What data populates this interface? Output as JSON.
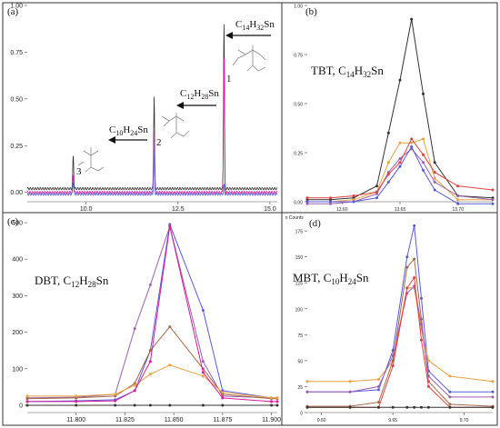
{
  "panels": [
    {
      "label": "(a)"
    },
    {
      "label": "(b)"
    },
    {
      "label": "(c)"
    },
    {
      "label": "(d)"
    }
  ],
  "annotations": {
    "a": [
      {
        "text": "C",
        "sub1": "14",
        "mid": "H",
        "sub2": "32",
        "end": "Sn"
      },
      {
        "text": "C",
        "sub1": "12",
        "mid": "H",
        "sub2": "28",
        "end": "Sn"
      },
      {
        "text": "C",
        "sub1": "10",
        "mid": "H",
        "sub2": "24",
        "end": "Sn"
      }
    ],
    "peak_numbers": [
      "1",
      "2",
      "3"
    ],
    "b": {
      "text": "TBT, C",
      "sub1": "14",
      "mid": "H",
      "sub2": "32",
      "end": "Sn"
    },
    "c": {
      "text": "DBT, C",
      "sub1": "12",
      "mid": "H",
      "sub2": "28",
      "end": "Sn"
    },
    "d": {
      "text": "MBT, C",
      "sub1": "10",
      "mid": "H",
      "sub2": "24",
      "end": "Sn"
    },
    "d_corner": "x Counts"
  },
  "colors": {
    "black": "#333333",
    "magenta": "#d81b9b",
    "blue": "#5a5ad8",
    "orange": "#e8a040",
    "purple": "#9a60b0",
    "brown": "#a06a4a",
    "red": "#e04040"
  },
  "chart_data": [
    {
      "type": "line",
      "panel": "a",
      "xlim": [
        8.4,
        15.2
      ],
      "ylim": [
        -0.05,
        1.0
      ],
      "xticks": [
        "10.0",
        "12.5",
        "15.0"
      ],
      "yticks": [
        "0.00",
        "0.25",
        "0.50",
        "0.75",
        "1.00"
      ],
      "peaks": [
        {
          "x": 9.65,
          "heights": [
            0.18,
            0.1,
            0.07
          ]
        },
        {
          "x": 11.85,
          "heights": [
            0.5,
            0.35,
            0.3
          ]
        },
        {
          "x": 13.75,
          "heights": [
            0.9,
            0.73,
            0.05
          ]
        }
      ]
    },
    {
      "type": "line",
      "panel": "b",
      "xlim": [
        13.57,
        13.73
      ],
      "ylim": [
        0.0,
        1.0
      ],
      "xticks": [
        "13.60",
        "13.65",
        "13.70"
      ],
      "yticks": [
        "0.00",
        "0.25",
        "0.50",
        "0.75",
        "1.00"
      ],
      "x": [
        13.57,
        13.59,
        13.61,
        13.63,
        13.64,
        13.65,
        13.66,
        13.67,
        13.68,
        13.7,
        13.73
      ],
      "series": [
        {
          "values": [
            0.01,
            0.01,
            0.02,
            0.08,
            0.35,
            0.62,
            0.93,
            0.55,
            0.2,
            0.03,
            0.02
          ]
        },
        {
          "values": [
            0.0,
            0.0,
            0.01,
            0.05,
            0.2,
            0.3,
            0.3,
            0.32,
            0.12,
            0.01,
            0.01
          ]
        },
        {
          "values": [
            -0.01,
            -0.01,
            0.0,
            0.04,
            0.15,
            0.22,
            0.27,
            0.2,
            0.1,
            0.03,
            0.01
          ]
        },
        {
          "values": [
            0.02,
            0.02,
            0.03,
            0.05,
            0.14,
            0.2,
            0.32,
            0.24,
            0.15,
            0.08,
            0.06
          ]
        },
        {
          "values": [
            0.0,
            0.0,
            0.0,
            0.02,
            0.1,
            0.18,
            0.28,
            0.16,
            0.06,
            -0.01,
            -0.01
          ]
        }
      ]
    },
    {
      "type": "line",
      "panel": "c",
      "xlim": [
        11.775,
        11.903
      ],
      "ylim": [
        -20,
        520
      ],
      "xticks": [
        "11.800",
        "11.825",
        "11.850",
        "11.875",
        "11.900"
      ],
      "yticks": [
        "0",
        "100",
        "200",
        "300",
        "400",
        "500"
      ],
      "x": [
        11.775,
        11.8,
        11.82,
        11.83,
        11.838,
        11.848,
        11.865,
        11.875,
        11.9,
        11.903
      ],
      "series": [
        {
          "values": [
            20,
            22,
            30,
            210,
            330,
            490,
            120,
            25,
            20,
            20
          ]
        },
        {
          "values": [
            10,
            12,
            15,
            40,
            150,
            495,
            260,
            40,
            20,
            20
          ]
        },
        {
          "values": [
            18,
            20,
            25,
            60,
            150,
            215,
            100,
            30,
            18,
            18
          ]
        },
        {
          "values": [
            25,
            25,
            30,
            55,
            85,
            110,
            80,
            35,
            20,
            20
          ]
        },
        {
          "values": [
            10,
            10,
            12,
            40,
            120,
            490,
            90,
            20,
            10,
            10
          ]
        },
        {
          "values": [
            0,
            0,
            0,
            0,
            0,
            0,
            0,
            0,
            0,
            0
          ]
        }
      ]
    },
    {
      "type": "line",
      "panel": "d",
      "xlim": [
        9.59,
        9.72
      ],
      "ylim": [
        0,
        190
      ],
      "xticks": [
        "9.60",
        "9.65",
        "9.70"
      ],
      "yticks": [
        "0",
        "25",
        "50",
        "75",
        "100",
        "125",
        "150",
        "175"
      ],
      "x": [
        9.59,
        9.62,
        9.64,
        9.65,
        9.66,
        9.665,
        9.67,
        9.675,
        9.69,
        9.72
      ],
      "series": [
        {
          "values": [
            20,
            20,
            22,
            60,
            150,
            180,
            110,
            40,
            20,
            20
          ]
        },
        {
          "values": [
            30,
            30,
            32,
            50,
            120,
            120,
            80,
            50,
            35,
            30
          ]
        },
        {
          "values": [
            6,
            6,
            10,
            50,
            140,
            148,
            90,
            30,
            8,
            6
          ]
        },
        {
          "values": [
            20,
            20,
            25,
            55,
            115,
            122,
            85,
            35,
            15,
            15
          ]
        },
        {
          "values": [
            5,
            5,
            5,
            45,
            120,
            130,
            70,
            25,
            5,
            5
          ]
        },
        {
          "values": [
            5,
            5,
            5,
            5,
            5,
            5,
            5,
            5,
            5,
            5
          ]
        }
      ]
    }
  ]
}
